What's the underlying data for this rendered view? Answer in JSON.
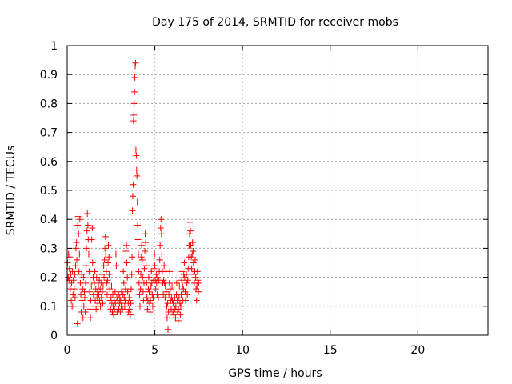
{
  "chart_data": {
    "type": "scatter",
    "title": "Day 175 of 2014, SRMTID for receiver mobs",
    "xlabel": "GPS time / hours",
    "ylabel": "SRMTID / TECUs",
    "xlim": [
      0,
      24
    ],
    "ylim": [
      0,
      1
    ],
    "xticks": [
      0,
      5,
      10,
      15,
      20
    ],
    "xtick_labels": [
      "0",
      "5",
      "10",
      "15",
      "20"
    ],
    "yticks": [
      0,
      0.1,
      0.2,
      0.3,
      0.4,
      0.5,
      0.6,
      0.7,
      0.8,
      0.9,
      1
    ],
    "ytick_labels": [
      "0",
      "0.1",
      "0.2",
      "0.3",
      "0.4",
      "0.5",
      "0.6",
      "0.7",
      "0.8",
      "0.9",
      "1"
    ],
    "grid": true,
    "marker": "plus",
    "color": "#ff0000",
    "series": [
      {
        "points": [
          [
            0.02,
            0.25
          ],
          [
            0.05,
            0.2
          ],
          [
            0.08,
            0.28
          ],
          [
            0.1,
            0.19
          ],
          [
            0.13,
            0.23
          ],
          [
            0.15,
            0.27
          ],
          [
            0.18,
            0.16
          ],
          [
            0.2,
            0.21
          ],
          [
            0.23,
            0.12
          ],
          [
            0.25,
            0.18
          ],
          [
            0.28,
            0.1
          ],
          [
            0.3,
            0.22
          ],
          [
            0.33,
            0.14
          ],
          [
            0.35,
            0.19
          ],
          [
            0.38,
            0.1
          ],
          [
            0.4,
            0.16
          ],
          [
            0.43,
            0.21
          ],
          [
            0.45,
            0.13
          ],
          [
            0.48,
            0.24
          ],
          [
            0.5,
            0.3
          ],
          [
            0.53,
            0.32
          ],
          [
            0.55,
            0.26
          ],
          [
            0.58,
            0.04
          ],
          [
            0.6,
            0.38
          ],
          [
            0.62,
            0.41
          ],
          [
            0.65,
            0.35
          ],
          [
            0.67,
            0.22
          ],
          [
            0.7,
            0.28
          ],
          [
            0.72,
            0.4
          ],
          [
            0.75,
            0.18
          ],
          [
            0.78,
            0.14
          ],
          [
            0.8,
            0.08
          ],
          [
            0.83,
            0.21
          ],
          [
            0.85,
            0.12
          ],
          [
            0.88,
            0.16
          ],
          [
            0.9,
            0.06
          ],
          [
            0.93,
            0.2
          ],
          [
            0.95,
            0.1
          ],
          [
            0.98,
            0.15
          ],
          [
            1.0,
            0.13
          ],
          [
            1.03,
            0.08
          ],
          [
            1.05,
            0.18
          ],
          [
            1.08,
            0.24
          ],
          [
            1.1,
            0.3
          ],
          [
            1.13,
            0.36
          ],
          [
            1.15,
            0.42
          ],
          [
            1.18,
            0.38
          ],
          [
            1.2,
            0.33
          ],
          [
            1.23,
            0.28
          ],
          [
            1.25,
            0.22
          ],
          [
            1.28,
            0.15
          ],
          [
            1.3,
            0.09
          ],
          [
            1.33,
            0.06
          ],
          [
            1.35,
            0.12
          ],
          [
            1.38,
            0.17
          ],
          [
            1.4,
            0.33
          ],
          [
            1.43,
            0.37
          ],
          [
            1.45,
            0.25
          ],
          [
            1.48,
            0.2
          ],
          [
            1.5,
            0.14
          ],
          [
            1.53,
            0.1
          ],
          [
            1.55,
            0.18
          ],
          [
            1.58,
            0.22
          ],
          [
            1.6,
            0.12
          ],
          [
            1.63,
            0.16
          ],
          [
            1.65,
            0.09
          ],
          [
            1.68,
            0.2
          ],
          [
            1.7,
            0.13
          ],
          [
            1.73,
            0.15
          ],
          [
            1.75,
            0.11
          ],
          [
            1.78,
            0.17
          ],
          [
            1.8,
            0.14
          ],
          [
            1.83,
            0.19
          ],
          [
            1.85,
            0.12
          ],
          [
            1.88,
            0.16
          ],
          [
            1.9,
            0.1
          ],
          [
            1.93,
            0.18
          ],
          [
            1.95,
            0.13
          ],
          [
            1.98,
            0.21
          ],
          [
            2.0,
            0.15
          ],
          [
            2.03,
            0.11
          ],
          [
            2.05,
            0.17
          ],
          [
            2.08,
            0.24
          ],
          [
            2.1,
            0.2
          ],
          [
            2.13,
            0.26
          ],
          [
            2.15,
            0.3
          ],
          [
            2.18,
            0.34
          ],
          [
            2.2,
            0.28
          ],
          [
            2.23,
            0.22
          ],
          [
            2.25,
            0.18
          ],
          [
            2.28,
            0.14
          ],
          [
            2.3,
            0.19
          ],
          [
            2.33,
            0.25
          ],
          [
            2.35,
            0.31
          ],
          [
            2.38,
            0.27
          ],
          [
            2.4,
            0.21
          ],
          [
            2.43,
            0.16
          ],
          [
            2.45,
            0.12
          ],
          [
            2.48,
            0.09
          ],
          [
            2.5,
            0.13
          ],
          [
            2.53,
            0.17
          ],
          [
            2.55,
            0.11
          ],
          [
            2.58,
            0.08
          ],
          [
            2.6,
            0.14
          ],
          [
            2.63,
            0.1
          ],
          [
            2.65,
            0.07
          ],
          [
            2.68,
            0.12
          ],
          [
            2.7,
            0.09
          ],
          [
            2.73,
            0.15
          ],
          [
            2.75,
            0.11
          ],
          [
            2.78,
            0.28
          ],
          [
            2.8,
            0.24
          ],
          [
            2.83,
            0.13
          ],
          [
            2.85,
            0.08
          ],
          [
            2.88,
            0.12
          ],
          [
            2.9,
            0.1
          ],
          [
            2.93,
            0.14
          ],
          [
            2.95,
            0.09
          ],
          [
            2.98,
            0.11
          ],
          [
            3.0,
            0.13
          ],
          [
            3.03,
            0.08
          ],
          [
            3.05,
            0.12
          ],
          [
            3.08,
            0.1
          ],
          [
            3.1,
            0.15
          ],
          [
            3.13,
            0.11
          ],
          [
            3.15,
            0.09
          ],
          [
            3.18,
            0.14
          ],
          [
            3.2,
            0.22
          ],
          [
            3.23,
            0.18
          ],
          [
            3.25,
            0.13
          ],
          [
            3.28,
            0.1
          ],
          [
            3.3,
            0.12
          ],
          [
            3.33,
            0.16
          ],
          [
            3.35,
            0.29
          ],
          [
            3.38,
            0.31
          ],
          [
            3.4,
            0.25
          ],
          [
            3.43,
            0.2
          ],
          [
            3.45,
            0.15
          ],
          [
            3.48,
            0.11
          ],
          [
            3.5,
            0.08
          ],
          [
            3.53,
            0.13
          ],
          [
            3.55,
            0.09
          ],
          [
            3.58,
            0.12
          ],
          [
            3.6,
            0.07
          ],
          [
            3.63,
            0.11
          ],
          [
            3.65,
            0.16
          ],
          [
            3.68,
            0.21
          ],
          [
            3.7,
            0.27
          ],
          [
            3.72,
            0.43
          ],
          [
            3.74,
            0.48
          ],
          [
            3.76,
            0.52
          ],
          [
            3.78,
            0.74
          ],
          [
            3.8,
            0.76
          ],
          [
            3.82,
            0.8
          ],
          [
            3.84,
            0.84
          ],
          [
            3.86,
            0.89
          ],
          [
            3.88,
            0.93
          ],
          [
            3.9,
            0.94
          ],
          [
            3.92,
            0.64
          ],
          [
            3.94,
            0.62
          ],
          [
            3.96,
            0.57
          ],
          [
            3.98,
            0.55
          ],
          [
            4.0,
            0.46
          ],
          [
            4.02,
            0.38
          ],
          [
            4.04,
            0.33
          ],
          [
            4.06,
            0.28
          ],
          [
            4.08,
            0.22
          ],
          [
            4.1,
            0.18
          ],
          [
            4.13,
            0.14
          ],
          [
            4.15,
            0.1
          ],
          [
            4.18,
            0.16
          ],
          [
            4.2,
            0.21
          ],
          [
            4.23,
            0.27
          ],
          [
            4.25,
            0.31
          ],
          [
            4.28,
            0.26
          ],
          [
            4.3,
            0.2
          ],
          [
            4.33,
            0.15
          ],
          [
            4.35,
            0.12
          ],
          [
            4.38,
            0.18
          ],
          [
            4.4,
            0.23
          ],
          [
            4.43,
            0.29
          ],
          [
            4.45,
            0.35
          ],
          [
            4.48,
            0.32
          ],
          [
            4.5,
            0.24
          ],
          [
            4.53,
            0.18
          ],
          [
            4.55,
            0.13
          ],
          [
            4.58,
            0.09
          ],
          [
            4.6,
            0.12
          ],
          [
            4.63,
            0.16
          ],
          [
            4.65,
            0.2
          ],
          [
            4.68,
            0.15
          ],
          [
            4.7,
            0.11
          ],
          [
            4.73,
            0.08
          ],
          [
            4.75,
            0.12
          ],
          [
            4.78,
            0.17
          ],
          [
            4.8,
            0.22
          ],
          [
            4.83,
            0.18
          ],
          [
            4.85,
            0.14
          ],
          [
            4.88,
            0.1
          ],
          [
            4.9,
            0.13
          ],
          [
            4.93,
            0.19
          ],
          [
            4.95,
            0.23
          ],
          [
            4.98,
            0.28
          ],
          [
            5.0,
            0.24
          ],
          [
            5.03,
            0.19
          ],
          [
            5.05,
            0.16
          ],
          [
            5.08,
            0.21
          ],
          [
            5.1,
            0.18
          ],
          [
            5.13,
            0.14
          ],
          [
            5.15,
            0.2
          ],
          [
            5.18,
            0.17
          ],
          [
            5.2,
            0.13
          ],
          [
            5.23,
            0.19
          ],
          [
            5.25,
            0.22
          ],
          [
            5.28,
            0.26
          ],
          [
            5.3,
            0.31
          ],
          [
            5.33,
            0.37
          ],
          [
            5.35,
            0.4
          ],
          [
            5.38,
            0.35
          ],
          [
            5.4,
            0.28
          ],
          [
            5.43,
            0.22
          ],
          [
            5.45,
            0.18
          ],
          [
            5.48,
            0.14
          ],
          [
            5.5,
            0.19
          ],
          [
            5.53,
            0.24
          ],
          [
            5.55,
            0.18
          ],
          [
            5.58,
            0.13
          ],
          [
            5.6,
            0.17
          ],
          [
            5.63,
            0.22
          ],
          [
            5.65,
            0.15
          ],
          [
            5.68,
            0.1
          ],
          [
            5.7,
            0.06
          ],
          [
            5.73,
            0.11
          ],
          [
            5.75,
            0.02
          ],
          [
            5.78,
            0.08
          ],
          [
            5.8,
            0.14
          ],
          [
            5.83,
            0.18
          ],
          [
            5.85,
            0.22
          ],
          [
            5.88,
            0.16
          ],
          [
            5.9,
            0.12
          ],
          [
            5.93,
            0.09
          ],
          [
            5.95,
            0.13
          ],
          [
            5.98,
            0.17
          ],
          [
            6.0,
            0.12
          ],
          [
            6.03,
            0.08
          ],
          [
            6.05,
            0.11
          ],
          [
            6.08,
            0.07
          ],
          [
            6.1,
            0.1
          ],
          [
            6.13,
            0.13
          ],
          [
            6.15,
            0.09
          ],
          [
            6.18,
            0.06
          ],
          [
            6.2,
            0.1
          ],
          [
            6.23,
            0.14
          ],
          [
            6.25,
            0.18
          ],
          [
            6.28,
            0.12
          ],
          [
            6.3,
            0.08
          ],
          [
            6.33,
            0.05
          ],
          [
            6.35,
            0.09
          ],
          [
            6.38,
            0.13
          ],
          [
            6.4,
            0.17
          ],
          [
            6.43,
            0.11
          ],
          [
            6.45,
            0.07
          ],
          [
            6.48,
            0.1
          ],
          [
            6.5,
            0.14
          ],
          [
            6.53,
            0.19
          ],
          [
            6.55,
            0.22
          ],
          [
            6.58,
            0.17
          ],
          [
            6.6,
            0.12
          ],
          [
            6.63,
            0.16
          ],
          [
            6.65,
            0.21
          ],
          [
            6.68,
            0.25
          ],
          [
            6.7,
            0.2
          ],
          [
            6.73,
            0.15
          ],
          [
            6.75,
            0.12
          ],
          [
            6.78,
            0.17
          ],
          [
            6.8,
            0.21
          ],
          [
            6.83,
            0.18
          ],
          [
            6.85,
            0.14
          ],
          [
            6.88,
            0.19
          ],
          [
            6.9,
            0.23
          ],
          [
            6.93,
            0.27
          ],
          [
            6.95,
            0.31
          ],
          [
            6.98,
            0.35
          ],
          [
            7.0,
            0.39
          ],
          [
            7.03,
            0.36
          ],
          [
            7.05,
            0.31
          ],
          [
            7.08,
            0.27
          ],
          [
            7.1,
            0.23
          ],
          [
            7.13,
            0.28
          ],
          [
            7.15,
            0.32
          ],
          [
            7.18,
            0.29
          ],
          [
            7.2,
            0.25
          ],
          [
            7.23,
            0.21
          ],
          [
            7.25,
            0.18
          ],
          [
            7.28,
            0.22
          ],
          [
            7.3,
            0.26
          ],
          [
            7.33,
            0.2
          ],
          [
            7.35,
            0.16
          ],
          [
            7.38,
            0.12
          ],
          [
            7.4,
            0.17
          ],
          [
            7.43,
            0.22
          ],
          [
            7.45,
            0.19
          ],
          [
            7.48,
            0.15
          ],
          [
            7.5,
            0.18
          ]
        ]
      }
    ]
  }
}
